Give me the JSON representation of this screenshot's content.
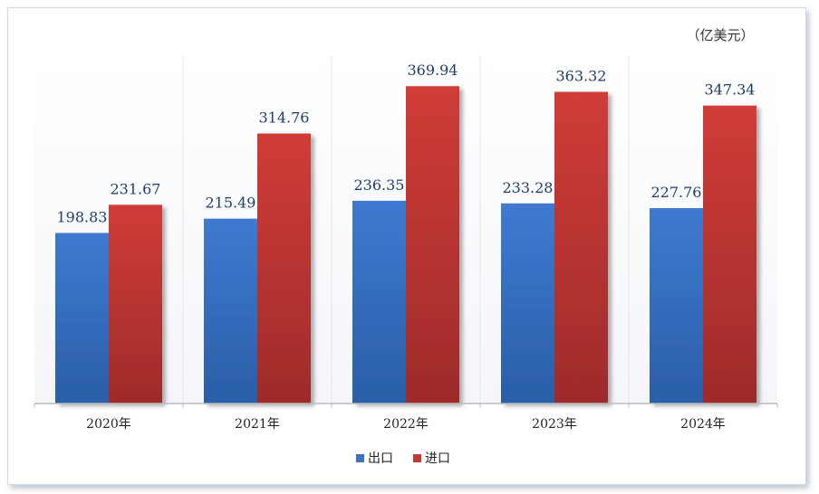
{
  "chart_data": {
    "type": "bar",
    "unit_label": "（亿美元）",
    "categories": [
      "2020年",
      "2021年",
      "2022年",
      "2023年",
      "2024年"
    ],
    "series": [
      {
        "name": "出口",
        "values": [
          198.83,
          215.49,
          236.35,
          233.28,
          227.76
        ],
        "color": "#3b72c4"
      },
      {
        "name": "进口",
        "values": [
          231.67,
          314.76,
          369.94,
          363.32,
          347.34
        ],
        "color": "#c43a37"
      }
    ],
    "value_labels": [
      [
        "198.83",
        "215.49",
        "236.35",
        "233.28",
        "227.76"
      ],
      [
        "231.67",
        "314.76",
        "369.94",
        "363.32",
        "347.34"
      ]
    ],
    "ylim": [
      0,
      405
    ],
    "grid": false,
    "legend_position": "bottom-center"
  }
}
